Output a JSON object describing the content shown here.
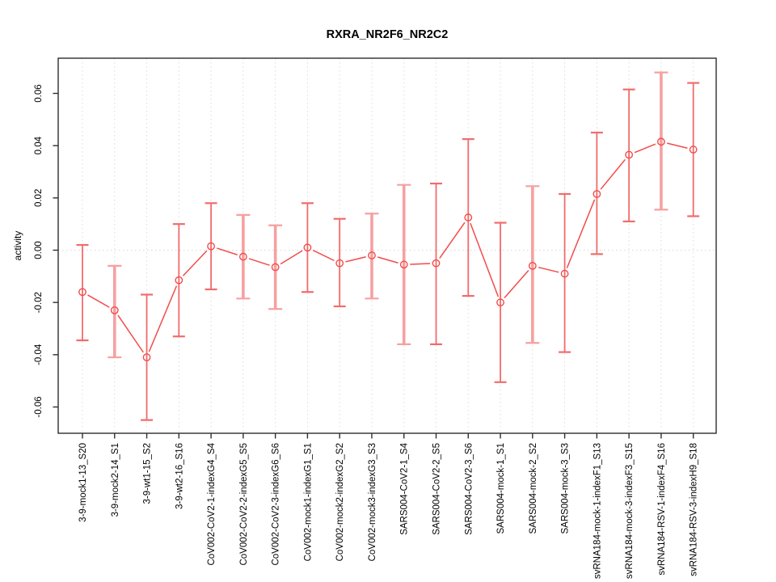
{
  "title": "RXRA_NR2F6_NR2C2",
  "colors": {
    "series_red": "#f24b4b",
    "error_bar_thin": "#f26b6b",
    "error_bar_thick": "#f6a0a0",
    "grid_gray": "#dcdcdc",
    "zero_line_gray": "#d8d8d8",
    "box_dark": "#2e2e2e",
    "text_black": "#000000",
    "background": "#ffffff"
  },
  "chart_data": {
    "type": "line",
    "title": "RXRA_NR2F6_NR2C2",
    "xlabel": "",
    "ylabel": "activity",
    "ylim": [
      -0.07,
      0.073
    ],
    "yticks": [
      0.06,
      0.04,
      0.02,
      0.0,
      -0.02,
      -0.04,
      -0.06
    ],
    "ytick_labels": [
      "0.06",
      "0.04",
      "0.02",
      "0.00",
      "-0.02",
      "-0.04",
      "-0.06"
    ],
    "grid": "vertical dotted gridline at each category; horizontal dotted line at y=0 only",
    "legend_position": "none",
    "point_style": "open red circles with red error bars and connecting segments",
    "categories": [
      "3-9-mock1-13_S20",
      "3-9-mock2-14_S1",
      "3-9-wt1-15_S2",
      "3-9-wt2-16_S16",
      "CoV002-CoV2-1-indexG4_S4",
      "CoV002-CoV2-2-indexG5_S5",
      "CoV002-CoV2-3-indexG6_S6",
      "CoV002-mock1-indexG1_S1",
      "CoV002-mock2-indexG2_S2",
      "CoV002-mock3-indexG3_S3",
      "SARS004-CoV2-1_S4",
      "SARS004-CoV2-2_S5",
      "SARS004-CoV2-3_S6",
      "SARS004-mock-1_S1",
      "SARS004-mock-2_S2",
      "SARS004-mock-3_S3",
      "svRNA184-mock-1-indexF1_S13",
      "svRNA184-mock-3-indexF3_S15",
      "svRNA184-RSV-1-indexF4_S16",
      "svRNA184-RSV-3-indexH9_S18"
    ],
    "series": [
      {
        "name": "activity",
        "values": [
          -0.016,
          -0.023,
          -0.041,
          -0.0115,
          0.0015,
          -0.0025,
          -0.0065,
          0.001,
          -0.005,
          -0.002,
          -0.0055,
          -0.005,
          0.0125,
          -0.02,
          -0.006,
          -0.009,
          0.0215,
          0.0365,
          0.0415,
          0.0385
        ],
        "error_low": [
          -0.0345,
          -0.041,
          -0.065,
          -0.033,
          -0.015,
          -0.0185,
          -0.0225,
          -0.016,
          -0.0215,
          -0.0185,
          -0.036,
          -0.036,
          -0.0175,
          -0.0505,
          -0.0355,
          -0.039,
          -0.0015,
          0.011,
          0.0155,
          0.013
        ],
        "error_high": [
          0.002,
          -0.006,
          -0.017,
          0.01,
          0.018,
          0.0135,
          0.0095,
          0.018,
          0.012,
          0.014,
          0.025,
          0.0255,
          0.0425,
          0.0105,
          0.0245,
          0.0215,
          0.045,
          0.0615,
          0.068,
          0.064
        ],
        "thick_bar": [
          false,
          true,
          false,
          false,
          false,
          true,
          true,
          false,
          false,
          true,
          true,
          false,
          false,
          false,
          true,
          false,
          false,
          false,
          true,
          false
        ]
      }
    ]
  }
}
